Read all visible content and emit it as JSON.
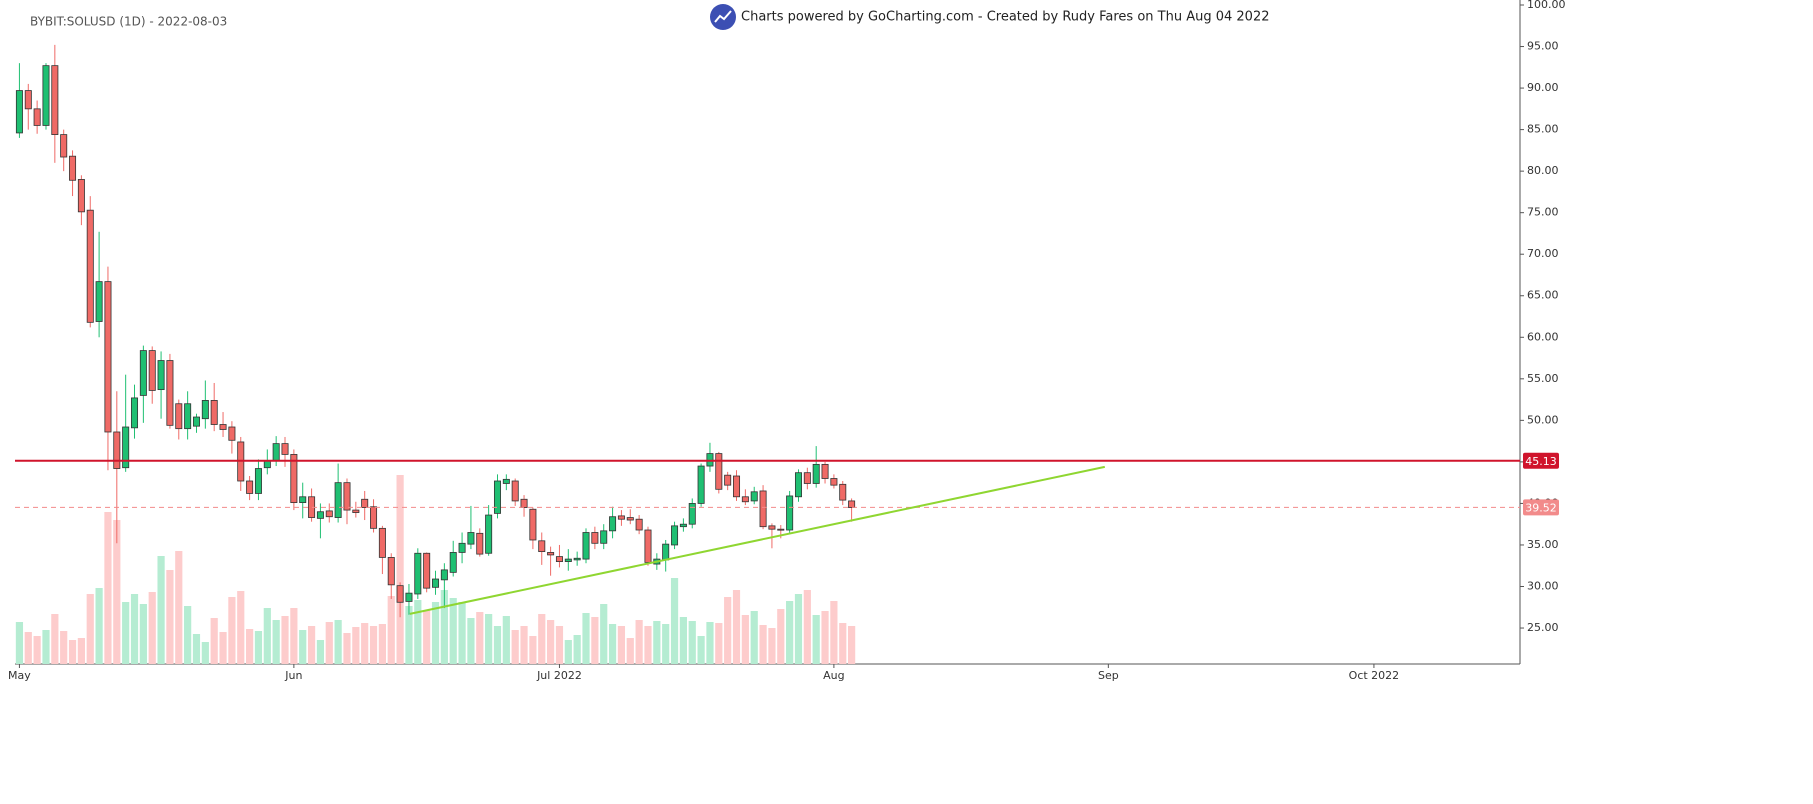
{
  "chart_data": {
    "type": "candlestick",
    "title": "BYBIT:SOLUSD (1D) - 2022-08-03",
    "subtitle": "Charts powered by GoCharting.com - Created by Rudy Fares on Thu Aug 04 2022",
    "up_color": "#1fbf72",
    "down_color": "#ef6a66",
    "volume_up_color": "#b5ecd2",
    "volume_down_color": "#fdcccc",
    "xlim": [
      -0.5,
      169.5
    ],
    "xticks": [
      {
        "value": 0,
        "label": "May"
      },
      {
        "value": 31,
        "label": "Jun"
      },
      {
        "value": 61,
        "label": "Jul 2022"
      },
      {
        "value": 92,
        "label": "Aug"
      },
      {
        "value": 123,
        "label": "Sep"
      },
      {
        "value": 153,
        "label": "Oct 2022"
      }
    ],
    "ylim": [
      20.67,
      100
    ],
    "yticks": [
      {
        "value": 25,
        "label": "25.00"
      },
      {
        "value": 30,
        "label": "30.00"
      },
      {
        "value": 35,
        "label": "35.00"
      },
      {
        "value": 40,
        "label": "40.00"
      },
      {
        "value": 45,
        "label": "45.00"
      },
      {
        "value": 50,
        "label": "50.00"
      },
      {
        "value": 55,
        "label": "55.00"
      },
      {
        "value": 60,
        "label": "60.00"
      },
      {
        "value": 65,
        "label": "65.00"
      },
      {
        "value": 70,
        "label": "70.00"
      },
      {
        "value": 75,
        "label": "75.00"
      },
      {
        "value": 80,
        "label": "80.00"
      },
      {
        "value": 85,
        "label": "85.00"
      },
      {
        "value": 90,
        "label": "90.00"
      },
      {
        "value": 95,
        "label": "95.00"
      },
      {
        "value": 100,
        "label": "100.00"
      }
    ],
    "open": [
      84.6,
      89.7,
      87.5,
      85.5,
      92.7,
      84.4,
      81.8,
      79,
      75.3,
      61.9,
      66.7,
      48.6,
      44.3,
      49.1,
      53,
      58.4,
      53.7,
      57.2,
      52,
      49,
      49.3,
      50.2,
      52.4,
      49.5,
      49.2,
      47.4,
      42.7,
      41.2,
      44.3,
      45.1,
      47.2,
      45.9,
      40.1,
      40.8,
      38.2,
      39.1,
      38.3,
      42.5,
      39.2,
      40.5,
      39.6,
      37,
      33.5,
      30.1,
      28.2,
      29.1,
      34,
      29.9,
      30.8,
      31.7,
      34.1,
      35.1,
      36.4,
      34,
      38.8,
      42.4,
      42.7,
      40.5,
      39.3,
      35.5,
      34.1,
      33.6,
      33,
      33.2,
      33.3,
      36.5,
      35.2,
      36.7,
      38.5,
      38.3,
      38.1,
      36.8,
      32.7,
      33.2,
      35,
      37.2,
      37.5,
      40,
      44.5,
      46,
      43.4,
      43.3,
      40.8,
      40.3,
      41.5,
      37.3,
      36.9,
      36.8,
      40.8,
      43.7,
      42.4,
      44.7,
      43,
      42.3,
      40.3
    ],
    "high": [
      93,
      90.5,
      88.5,
      93,
      95.2,
      85,
      82.5,
      79.5,
      77,
      72.7,
      68.5,
      53.5,
      55.5,
      54.3,
      59,
      58.9,
      58.3,
      58,
      52.5,
      53.5,
      50.8,
      54.8,
      54.5,
      51,
      49.9,
      48,
      43.3,
      45.3,
      46.5,
      48.1,
      48,
      46.5,
      42.5,
      41.8,
      40,
      40,
      44.8,
      43,
      40.2,
      41.5,
      40.5,
      37.3,
      34,
      30.5,
      30.3,
      34.6,
      34.1,
      31.9,
      32.8,
      35.5,
      36.5,
      39.7,
      37,
      39.8,
      43.5,
      43.5,
      43,
      41,
      39.5,
      36.5,
      34.8,
      35,
      34.5,
      34.2,
      37,
      37.2,
      37.5,
      39.6,
      39.2,
      39.3,
      38.6,
      37.2,
      34,
      35.6,
      37.8,
      38.2,
      40.6,
      44.8,
      47.3,
      46.2,
      43.8,
      44,
      41.7,
      42,
      42.2,
      37.6,
      37.4,
      41.5,
      44.1,
      44.3,
      46.9,
      45,
      43.5,
      42.7,
      40.6
    ],
    "low": [
      84,
      85,
      84.5,
      85,
      81,
      80,
      77,
      73.5,
      61.2,
      60,
      44,
      35.2,
      43.8,
      47.8,
      49.7,
      52,
      50.2,
      49,
      47.7,
      47.7,
      48.5,
      49,
      48.7,
      48,
      46,
      41.5,
      40.4,
      40.4,
      43.5,
      44.5,
      44.4,
      39.2,
      38.2,
      37.8,
      35.8,
      37.7,
      37.7,
      37.5,
      38.3,
      38,
      36.5,
      31.5,
      28.5,
      26.3,
      26.6,
      28.5,
      29.3,
      29,
      27.4,
      31.2,
      32.8,
      34.5,
      33.6,
      33.7,
      38.2,
      41.6,
      39.7,
      38.4,
      34.5,
      32.6,
      31.3,
      32.3,
      31.9,
      32.5,
      32.8,
      34.5,
      34.5,
      35.8,
      37.3,
      37.5,
      36.3,
      32.5,
      32,
      31.8,
      34.5,
      36.6,
      37,
      39.6,
      43.8,
      41.2,
      41.6,
      40.3,
      39.8,
      39.9,
      36.9,
      34.6,
      35.8,
      36.3,
      40.2,
      41.7,
      41.9,
      42.4,
      41.8,
      39.8,
      37.8
    ],
    "close": [
      89.7,
      87.5,
      85.5,
      92.7,
      84.4,
      81.7,
      78.9,
      75.1,
      61.8,
      66.7,
      48.6,
      44.2,
      49.2,
      52.7,
      58.4,
      53.6,
      57.2,
      49.4,
      49,
      52,
      50.4,
      52.4,
      49.5,
      48.9,
      47.6,
      42.7,
      41.2,
      44.2,
      45.1,
      47.2,
      45.9,
      40.1,
      40.8,
      38.3,
      39,
      38.4,
      42.5,
      39.2,
      38.9,
      39.5,
      37,
      33.5,
      30.2,
      28.1,
      29.2,
      34,
      29.8,
      30.9,
      32,
      34.1,
      35.2,
      36.5,
      33.9,
      38.6,
      42.7,
      42.9,
      40.3,
      39.5,
      35.6,
      34.2,
      33.8,
      33,
      33.3,
      33.4,
      36.5,
      35.2,
      36.7,
      38.4,
      38.1,
      38,
      36.8,
      32.9,
      33.3,
      35.1,
      37.3,
      37.5,
      40,
      44.5,
      46,
      41.7,
      42.2,
      40.8,
      40.2,
      41.4,
      37.2,
      36.9,
      36.8,
      40.9,
      43.7,
      42.4,
      44.7,
      43,
      42.2,
      40.4,
      39.5
    ],
    "volume": [
      42,
      32,
      28,
      34,
      50,
      33,
      24,
      26,
      70,
      76,
      152,
      144,
      62,
      70,
      60,
      72,
      108,
      94,
      113,
      58,
      30,
      22,
      46,
      32,
      67,
      73,
      35,
      33,
      56,
      44,
      48,
      56,
      34,
      38,
      24,
      42,
      44,
      31,
      37,
      41,
      38,
      40,
      68,
      189,
      58,
      64,
      54,
      62,
      74,
      66,
      62,
      46,
      52,
      50,
      38,
      48,
      34,
      38,
      28,
      50,
      44,
      38,
      24,
      29,
      51,
      47,
      60,
      40,
      38,
      26,
      44,
      38,
      43,
      40,
      86,
      47,
      43,
      28,
      42,
      41,
      67,
      74,
      49,
      53,
      39,
      36,
      55,
      63,
      70,
      74,
      49,
      53,
      63,
      41,
      38
    ],
    "volume_lim": [
      0,
      250
    ],
    "hlines": [
      {
        "value": 45.13,
        "color": "#d0142c",
        "style": "solid"
      },
      {
        "value": 39.52,
        "color": "#f28b8b",
        "style": "dashed"
      }
    ],
    "trendline": {
      "x": [
        44.1,
        122.6
      ],
      "y": [
        26.7,
        44.4
      ],
      "color": "#8fd631"
    }
  }
}
